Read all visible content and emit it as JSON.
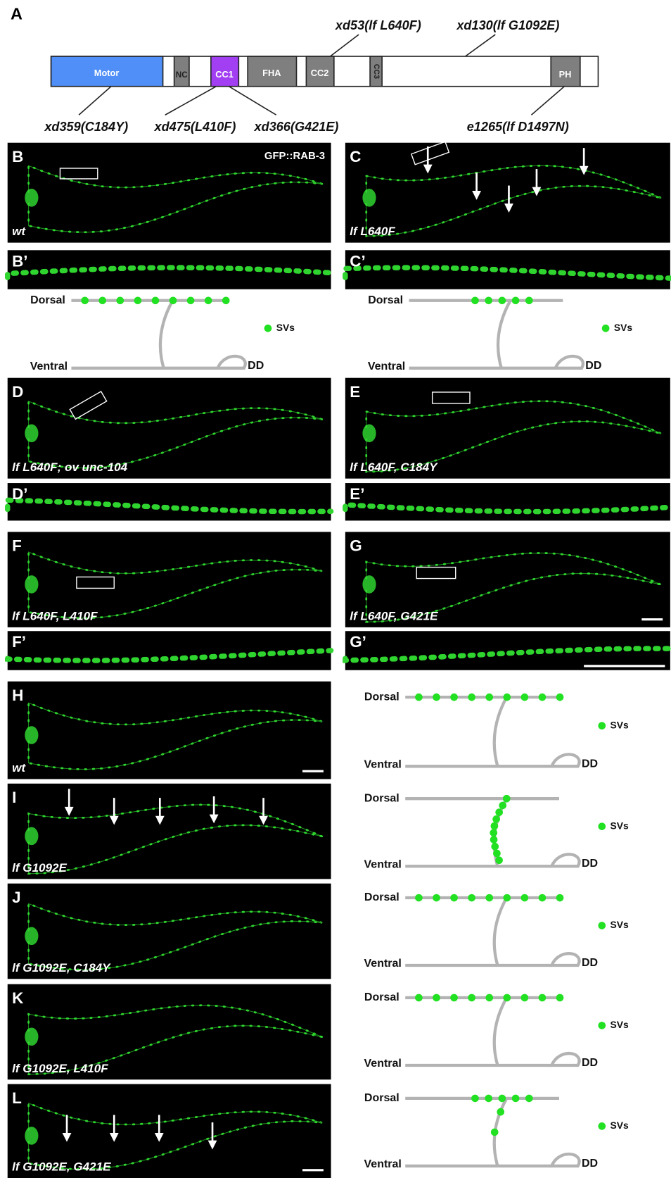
{
  "panel_a": {
    "label": "A",
    "domains": [
      "Motor",
      "NC",
      "CC1",
      "FHA",
      "CC2",
      "CC3",
      "PH"
    ],
    "mutations": [
      "xd53(lf L640F)",
      "xd130(lf G1092E)",
      "xd359(C184Y)",
      "xd475(L410F)",
      "xd366(G421E)",
      "e1265(lf D1497N)"
    ]
  },
  "micrograph_panels": [
    {
      "letter": "B",
      "genotype": "wt",
      "marker": "GFP::RAB-3"
    },
    {
      "letter": "C",
      "genotype": "lf L640F"
    },
    {
      "letter": "D",
      "genotype": "lf L640F; ov unc-104"
    },
    {
      "letter": "E",
      "genotype": "lf L640F, C184Y"
    },
    {
      "letter": "F",
      "genotype": "lf L640F, L410F"
    },
    {
      "letter": "G",
      "genotype": "lf L640F, G421E"
    },
    {
      "letter": "H",
      "genotype": "wt"
    },
    {
      "letter": "I",
      "genotype": "lf G1092E"
    },
    {
      "letter": "J",
      "genotype": "lf G1092E, C184Y"
    },
    {
      "letter": "K",
      "genotype": "lf G1092E, L410F"
    },
    {
      "letter": "L",
      "genotype": "lf G1092E, G421E"
    }
  ],
  "insets": [
    {
      "letter": "B’"
    },
    {
      "letter": "C’"
    },
    {
      "letter": "D’"
    },
    {
      "letter": "E’"
    },
    {
      "letter": "F’"
    },
    {
      "letter": "G’"
    }
  ],
  "schematics": [
    {
      "dorsal": "Dorsal",
      "ventral": "Ventral",
      "legend": "SVs",
      "neuron": "DD"
    },
    {
      "dorsal": "Dorsal",
      "ventral": "Ventral",
      "legend": "SVs",
      "neuron": "DD"
    },
    {
      "dorsal": "Dorsal",
      "ventral": "Ventral",
      "legend": "SVs",
      "neuron": "DD"
    },
    {
      "dorsal": "Dorsal",
      "ventral": "Ventral",
      "legend": "SVs",
      "neuron": "DD"
    },
    {
      "dorsal": "Dorsal",
      "ventral": "Ventral",
      "legend": "SVs",
      "neuron": "DD"
    },
    {
      "dorsal": "Dorsal",
      "ventral": "Ventral",
      "legend": "SVs",
      "neuron": "DD"
    },
    {
      "dorsal": "Dorsal",
      "ventral": "Ventral",
      "legend": "SVs",
      "neuron": "DD"
    }
  ]
}
